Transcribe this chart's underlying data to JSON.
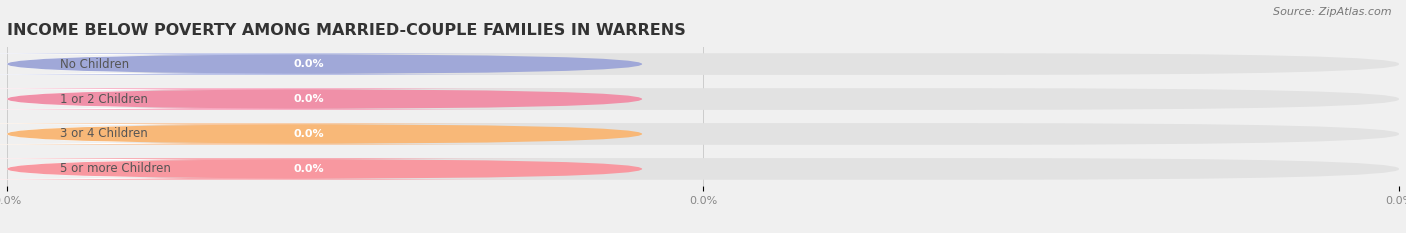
{
  "title": "INCOME BELOW POVERTY AMONG MARRIED-COUPLE FAMILIES IN WARRENS",
  "source": "Source: ZipAtlas.com",
  "categories": [
    "No Children",
    "1 or 2 Children",
    "3 or 4 Children",
    "5 or more Children"
  ],
  "values": [
    0.0,
    0.0,
    0.0,
    0.0
  ],
  "circle_colors": [
    "#a0a8d8",
    "#f090a8",
    "#f8b878",
    "#f898a0"
  ],
  "pill_colors": [
    "#b8c0e8",
    "#f8a8c0",
    "#f8c8a0",
    "#f8a8b0"
  ],
  "background_color": "#f0f0f0",
  "bar_bg_color": "#e2e2e2",
  "white_pill_color": "#ffffff",
  "title_fontsize": 11.5,
  "label_fontsize": 8.5,
  "value_fontsize": 8,
  "source_fontsize": 8,
  "tick_fontsize": 8
}
